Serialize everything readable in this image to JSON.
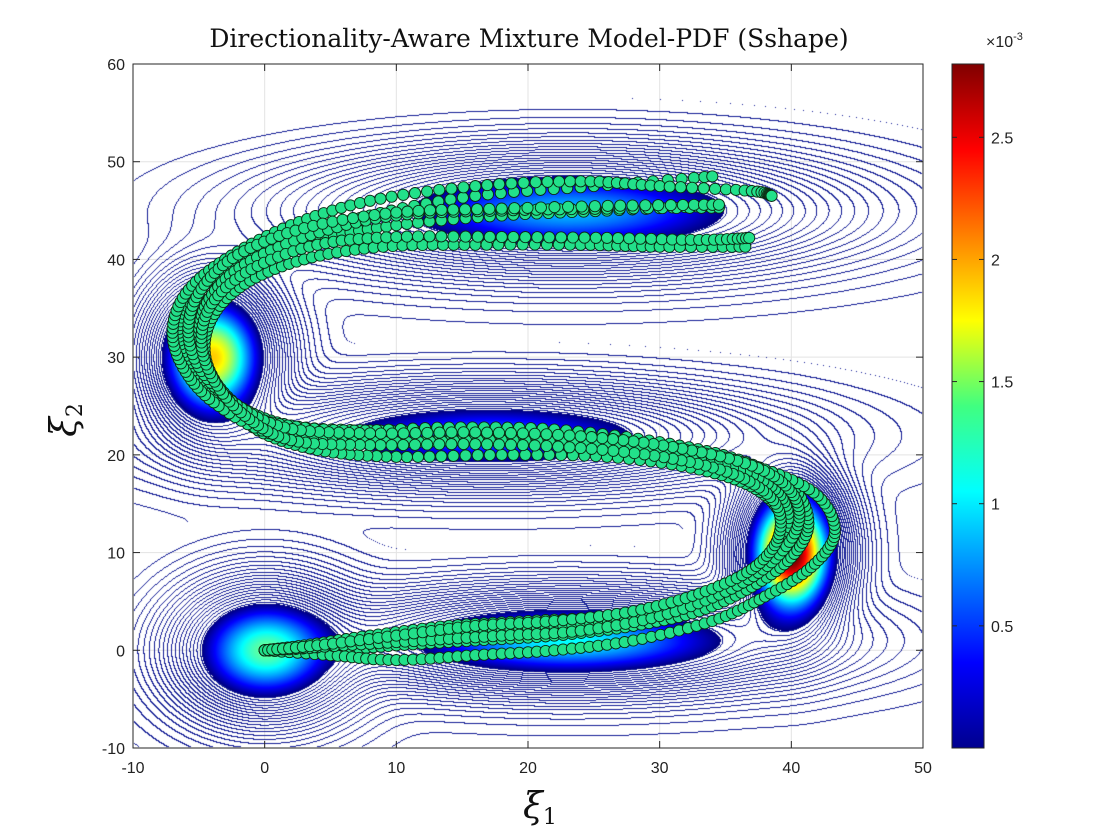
{
  "chart_data": {
    "type": "contour+scatter",
    "title": "Directionality-Aware Mixture Model-PDF (Sshape)",
    "xlabel": "ξ",
    "xlabel_sub": "1",
    "ylabel": "ξ",
    "ylabel_sub": "2",
    "xlim": [
      -10,
      50
    ],
    "ylim": [
      -10,
      60
    ],
    "xticks": [
      -10,
      0,
      10,
      20,
      30,
      40,
      50
    ],
    "yticks": [
      -10,
      0,
      10,
      20,
      30,
      40,
      50,
      60
    ],
    "grid": true,
    "colorbar": {
      "colormap": "jet",
      "range": [
        0,
        2.8
      ],
      "ticks": [
        0.5,
        1,
        1.5,
        2,
        2.5
      ],
      "tick_labels": [
        "0.5",
        "1",
        "1.5",
        "2",
        "2.5"
      ],
      "exponent_label": "×10",
      "exponent_power": "-3"
    },
    "gaussian_components": [
      {
        "center": [
          0,
          0
        ],
        "weight": 1.0,
        "spread": [
          3.5,
          3.5
        ]
      },
      {
        "center": [
          23,
          1
        ],
        "weight": 0.9,
        "spread": [
          9,
          2.5
        ]
      },
      {
        "center": [
          40,
          10
        ],
        "weight": 1.8,
        "spread": [
          2,
          4
        ]
      },
      {
        "center": [
          17,
          22
        ],
        "weight": 0.7,
        "spread": [
          10,
          2.5
        ]
      },
      {
        "center": [
          -4,
          30
        ],
        "weight": 1.3,
        "spread": [
          2.5,
          4
        ]
      },
      {
        "center": [
          23,
          45
        ],
        "weight": 0.8,
        "spread": [
          10,
          3
        ]
      }
    ],
    "demonstrations": [
      [
        [
          0,
          0
        ],
        [
          4,
          0.5
        ],
        [
          8,
          1
        ],
        [
          14,
          1.5
        ],
        [
          20,
          2
        ],
        [
          26,
          2.8
        ],
        [
          31,
          4
        ],
        [
          35,
          6
        ],
        [
          38,
          9
        ],
        [
          39.8,
          12.5
        ],
        [
          38.8,
          16
        ],
        [
          36,
          18.5
        ],
        [
          31,
          20.5
        ],
        [
          24,
          22
        ],
        [
          16,
          22.5
        ],
        [
          8,
          22.5
        ],
        [
          2,
          23
        ],
        [
          -2,
          25
        ],
        [
          -4.5,
          28
        ],
        [
          -5.5,
          31.5
        ],
        [
          -4.5,
          35.5
        ],
        [
          -1.5,
          39
        ],
        [
          4,
          42
        ],
        [
          10,
          43.5
        ],
        [
          18,
          44.5
        ],
        [
          26,
          45
        ],
        [
          34,
          45.5
        ]
      ],
      [
        [
          0,
          0
        ],
        [
          5,
          0
        ],
        [
          10,
          0.5
        ],
        [
          16,
          1
        ],
        [
          22,
          1.5
        ],
        [
          28,
          2.5
        ],
        [
          33,
          4
        ],
        [
          37,
          6.5
        ],
        [
          40,
          9.5
        ],
        [
          41.3,
          13
        ],
        [
          40,
          16.8
        ],
        [
          36,
          19.5
        ],
        [
          30,
          21.3
        ],
        [
          22,
          22.6
        ],
        [
          14,
          22.8
        ],
        [
          6,
          22.5
        ],
        [
          0,
          23.5
        ],
        [
          -3.5,
          26
        ],
        [
          -5.5,
          29
        ],
        [
          -6.5,
          32.5
        ],
        [
          -5.5,
          36
        ],
        [
          -2.5,
          39.5
        ],
        [
          2,
          42
        ],
        [
          8,
          44.5
        ],
        [
          16,
          46.5
        ],
        [
          25,
          47.5
        ],
        [
          34,
          48.5
        ]
      ],
      [
        [
          0,
          0
        ],
        [
          3,
          0.5
        ],
        [
          8,
          1.5
        ],
        [
          14,
          2.5
        ],
        [
          20,
          3
        ],
        [
          26,
          3.5
        ],
        [
          32,
          5
        ],
        [
          36,
          7
        ],
        [
          38.8,
          10
        ],
        [
          39.3,
          13.5
        ],
        [
          37.3,
          16.5
        ],
        [
          33,
          18.5
        ],
        [
          26,
          19.8
        ],
        [
          18,
          20
        ],
        [
          10,
          19.8
        ],
        [
          4,
          20.5
        ],
        [
          -0.5,
          22.5
        ],
        [
          -3,
          26
        ],
        [
          -4.5,
          30
        ],
        [
          -4,
          34
        ],
        [
          -1.5,
          37.5
        ],
        [
          3,
          40
        ],
        [
          9,
          41.3
        ],
        [
          16,
          41.5
        ],
        [
          24,
          41.5
        ],
        [
          30,
          41.3
        ],
        [
          36.5,
          41.3
        ]
      ],
      [
        [
          0,
          0
        ],
        [
          5,
          -0.5
        ],
        [
          10,
          -1
        ],
        [
          16,
          -0.5
        ],
        [
          22,
          0
        ],
        [
          28,
          1
        ],
        [
          34,
          3
        ],
        [
          38,
          5.5
        ],
        [
          41.5,
          8.5
        ],
        [
          43.3,
          12
        ],
        [
          42,
          15.8
        ],
        [
          38,
          18.5
        ],
        [
          32,
          20.5
        ],
        [
          24,
          21.7
        ],
        [
          16,
          22
        ],
        [
          8,
          21.5
        ],
        [
          1,
          22
        ],
        [
          -3.5,
          25
        ],
        [
          -6,
          28.5
        ],
        [
          -7,
          32.5
        ],
        [
          -6,
          36.5
        ],
        [
          -3,
          40
        ],
        [
          2,
          43.5
        ],
        [
          8,
          46
        ],
        [
          16,
          47.5
        ],
        [
          24,
          48
        ],
        [
          30,
          47.5
        ],
        [
          37,
          47
        ],
        [
          38.5,
          46.5
        ]
      ],
      [
        [
          0,
          0
        ],
        [
          4,
          0.3
        ],
        [
          10,
          1.2
        ],
        [
          16,
          2
        ],
        [
          22,
          2.5
        ],
        [
          28,
          3.3
        ],
        [
          33,
          5
        ],
        [
          37,
          7.5
        ],
        [
          39.5,
          10.8
        ],
        [
          39.6,
          14.8
        ],
        [
          37.5,
          17.6
        ],
        [
          32.5,
          19.7
        ],
        [
          26,
          21
        ],
        [
          18,
          21.5
        ],
        [
          10,
          21.3
        ],
        [
          3,
          21.8
        ],
        [
          -1.5,
          24.5
        ],
        [
          -4,
          28
        ],
        [
          -5,
          32
        ],
        [
          -4.2,
          36
        ],
        [
          -1.5,
          39.5
        ],
        [
          3.5,
          42.5
        ],
        [
          10,
          44.5
        ],
        [
          18,
          45
        ],
        [
          26,
          45.2
        ],
        [
          34.5,
          45.3
        ]
      ],
      [
        [
          0,
          0
        ],
        [
          6,
          0.5
        ],
        [
          12,
          1
        ],
        [
          18,
          1.5
        ],
        [
          24,
          2
        ],
        [
          30,
          3.5
        ],
        [
          35,
          6
        ],
        [
          38.5,
          9
        ],
        [
          40.5,
          12.8
        ],
        [
          40,
          16.2
        ],
        [
          37,
          18.9
        ],
        [
          31,
          20.8
        ],
        [
          24,
          21.9
        ],
        [
          16,
          22.3
        ],
        [
          8,
          22.2
        ],
        [
          1.5,
          22.8
        ],
        [
          -2.5,
          25.5
        ],
        [
          -5,
          29
        ],
        [
          -5.8,
          33
        ],
        [
          -4.8,
          37
        ],
        [
          -2,
          40.5
        ],
        [
          3,
          43.2
        ],
        [
          10,
          44.8
        ],
        [
          18,
          45.2
        ],
        [
          27,
          45.5
        ],
        [
          34.5,
          45.6
        ]
      ],
      [
        [
          0,
          0
        ],
        [
          4,
          0.5
        ],
        [
          10,
          1.5
        ],
        [
          16,
          2.5
        ],
        [
          22,
          3
        ],
        [
          28,
          4
        ],
        [
          33,
          5.8
        ],
        [
          37,
          8.3
        ],
        [
          39,
          11.5
        ],
        [
          38.8,
          15
        ],
        [
          36,
          17.8
        ],
        [
          31,
          19.6
        ],
        [
          24,
          20.7
        ],
        [
          16,
          21.1
        ],
        [
          8,
          21
        ],
        [
          2,
          21.5
        ],
        [
          -1.5,
          24
        ],
        [
          -3.8,
          27.5
        ],
        [
          -4.8,
          31.5
        ],
        [
          -4,
          35.5
        ],
        [
          -1,
          39
        ],
        [
          4,
          41.5
        ],
        [
          10,
          42.3
        ],
        [
          18,
          42.3
        ],
        [
          26,
          42.2
        ],
        [
          33,
          42
        ],
        [
          36.8,
          42.2
        ]
      ]
    ]
  }
}
